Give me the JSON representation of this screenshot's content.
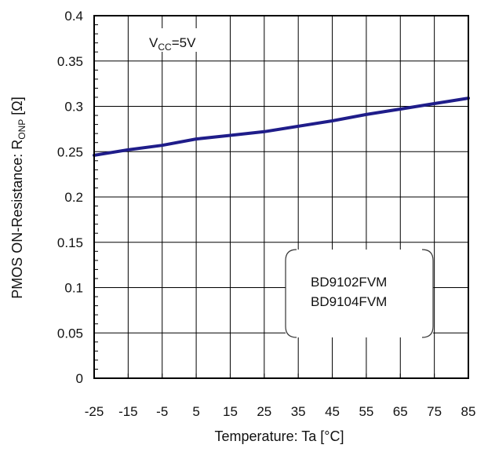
{
  "chart_data": {
    "type": "line",
    "xlabel": "Temperature: Ta [°C]",
    "ylabel_main": "PMOS ON-Resistance: R",
    "ylabel_sub": "ONP",
    "ylabel_unit": " [Ω]",
    "xlim": [
      -25,
      85
    ],
    "ylim": [
      0,
      0.4
    ],
    "grid": true,
    "x_ticks": [
      "-25",
      "-15",
      "-5",
      "5",
      "15",
      "25",
      "35",
      "45",
      "55",
      "65",
      "75",
      "85"
    ],
    "y_ticks": [
      "0",
      "0.05",
      "0.1",
      "0.15",
      "0.2",
      "0.25",
      "0.3",
      "0.35",
      "0.4"
    ],
    "series": [
      {
        "color": "#1f1d8a",
        "x": [
          -25,
          -15,
          -5,
          5,
          15,
          25,
          35,
          45,
          55,
          65,
          75,
          85
        ],
        "y": [
          0.246,
          0.252,
          0.257,
          0.264,
          0.268,
          0.272,
          0.278,
          0.284,
          0.291,
          0.297,
          0.303,
          0.309
        ]
      }
    ],
    "annotations": {
      "condition_main": "V",
      "condition_sub": "CC",
      "condition_value": "=5V",
      "devices": [
        "BD9102FVM",
        "BD9104FVM"
      ]
    }
  }
}
